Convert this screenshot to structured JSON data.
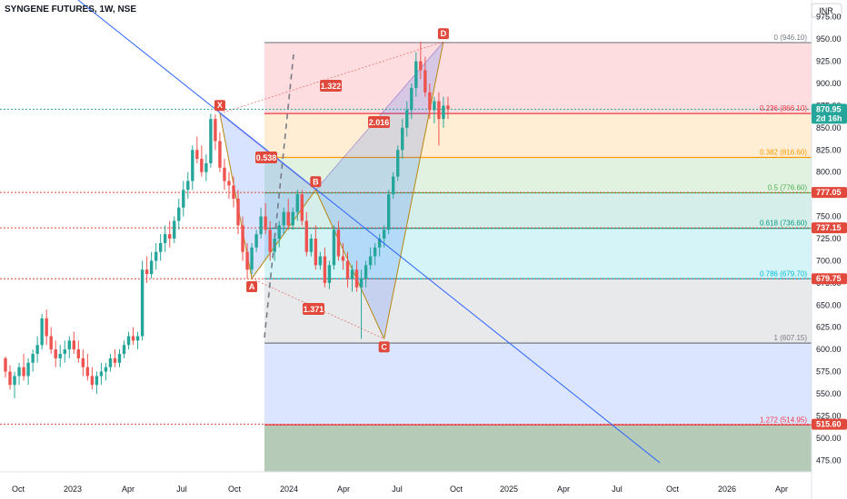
{
  "header": {
    "title": "SYNGENE FUTURES, 1W, NSE",
    "currency": "INR"
  },
  "colors": {
    "up": "#26a69a",
    "down": "#ef5350",
    "pattern_point": "#e0493b",
    "trendline": "#2962ff",
    "pattern_fill": "#2962ff",
    "leg_fill": "#f57c00"
  },
  "chart_data": {
    "type": "candlestick",
    "ylim": [
      462,
      988
    ],
    "x_ticks": [
      "Oct",
      "2023",
      "Apr",
      "Jul",
      "Oct",
      "2024",
      "Apr",
      "Jul",
      "Oct",
      "2025",
      "Apr",
      "Jul",
      "Oct",
      "2026",
      "Apr"
    ],
    "y_ticks": [
      "975.00",
      "950.00",
      "925.00",
      "900.00",
      "875.00",
      "850.00",
      "825.00",
      "800.00",
      "775.00",
      "750.00",
      "725.00",
      "700.00",
      "675.00",
      "650.00",
      "625.00",
      "600.00",
      "575.00",
      "550.00",
      "525.00",
      "500.00",
      "475.00"
    ],
    "price_badges": [
      {
        "text": "870.95",
        "sub": "2d 16h",
        "value": 870.95,
        "color": "#26a69a"
      },
      {
        "text": "777.05",
        "value": 777.05,
        "color": "#e0493b"
      },
      {
        "text": "737.15",
        "value": 737.15,
        "color": "#e0493b"
      },
      {
        "text": "679.75",
        "value": 679.75,
        "color": "#e0493b"
      },
      {
        "text": "515.60",
        "value": 515.6,
        "color": "#e0493b"
      }
    ],
    "fib_levels": [
      {
        "label": "0 (946.10)",
        "value": 946.1,
        "color": "#787b86"
      },
      {
        "label": "0.236 (866.10)",
        "value": 866.1,
        "color": "#f23645"
      },
      {
        "label": "0.382 (816.60)",
        "value": 816.6,
        "color": "#ff9800"
      },
      {
        "label": "0.5 (776.60)",
        "value": 776.6,
        "color": "#4caf50"
      },
      {
        "label": "0.618 (736.60)",
        "value": 736.6,
        "color": "#089981"
      },
      {
        "label": "0.786 (679.70)",
        "value": 679.7,
        "color": "#00bcd4"
      },
      {
        "label": "1 (607.15)",
        "value": 607.15,
        "color": "#787b86"
      },
      {
        "label": "1.272 (514.95)",
        "value": 514.95,
        "color": "#f23645"
      }
    ],
    "fib_zones": [
      {
        "top": 946.1,
        "bottom": 866.1,
        "color": "#f23645"
      },
      {
        "top": 866.1,
        "bottom": 816.6,
        "color": "#ff9800"
      },
      {
        "top": 816.6,
        "bottom": 776.6,
        "color": "#4caf50"
      },
      {
        "top": 776.6,
        "bottom": 736.6,
        "color": "#089981"
      },
      {
        "top": 736.6,
        "bottom": 679.7,
        "color": "#00bcd4"
      },
      {
        "top": 679.7,
        "bottom": 607.15,
        "color": "#787b86"
      },
      {
        "top": 607.15,
        "bottom": 514.95,
        "color": "#2962ff"
      },
      {
        "top": 514.95,
        "bottom": 462,
        "color": "#1b5e20"
      }
    ],
    "horizontal_lines": [
      {
        "value": 870.95,
        "style": "dotted",
        "color": "#26a69a"
      },
      {
        "value": 777.05,
        "style": "dotted",
        "color": "#e0493b"
      },
      {
        "value": 737.15,
        "style": "dotted",
        "color": "#e0493b"
      },
      {
        "value": 679.75,
        "style": "dotted",
        "color": "#e0493b"
      },
      {
        "value": 515.6,
        "style": "dotted",
        "color": "#e0493b"
      }
    ],
    "pattern_points": [
      {
        "name": "X",
        "value": 866
      },
      {
        "name": "A",
        "value": 680
      },
      {
        "name": "B",
        "value": 780
      },
      {
        "name": "C",
        "value": 612
      },
      {
        "name": "D",
        "value": 947
      }
    ],
    "ratios": [
      "1.322",
      "2.016",
      "0.538",
      "1.371"
    ],
    "candles": [
      [
        590,
        592,
        568,
        575
      ],
      [
        575,
        582,
        555,
        560
      ],
      [
        560,
        575,
        545,
        570
      ],
      [
        570,
        585,
        560,
        580
      ],
      [
        580,
        595,
        565,
        570
      ],
      [
        570,
        590,
        560,
        585
      ],
      [
        585,
        600,
        575,
        595
      ],
      [
        595,
        615,
        585,
        605
      ],
      [
        605,
        640,
        600,
        635
      ],
      [
        635,
        645,
        605,
        615
      ],
      [
        615,
        625,
        595,
        600
      ],
      [
        600,
        610,
        580,
        590
      ],
      [
        590,
        605,
        580,
        595
      ],
      [
        595,
        610,
        585,
        600
      ],
      [
        600,
        615,
        590,
        610
      ],
      [
        610,
        620,
        595,
        600
      ],
      [
        600,
        610,
        585,
        590
      ],
      [
        590,
        600,
        570,
        580
      ],
      [
        580,
        595,
        565,
        570
      ],
      [
        570,
        580,
        555,
        560
      ],
      [
        560,
        575,
        550,
        570
      ],
      [
        570,
        585,
        560,
        575
      ],
      [
        575,
        585,
        565,
        580
      ],
      [
        580,
        595,
        575,
        590
      ],
      [
        590,
        600,
        580,
        585
      ],
      [
        585,
        600,
        580,
        595
      ],
      [
        595,
        610,
        590,
        605
      ],
      [
        605,
        620,
        600,
        615
      ],
      [
        615,
        625,
        605,
        610
      ],
      [
        610,
        620,
        600,
        615
      ],
      [
        615,
        700,
        610,
        690
      ],
      [
        690,
        705,
        675,
        685
      ],
      [
        685,
        710,
        680,
        700
      ],
      [
        700,
        720,
        690,
        710
      ],
      [
        710,
        730,
        700,
        720
      ],
      [
        720,
        740,
        710,
        730
      ],
      [
        730,
        745,
        715,
        725
      ],
      [
        725,
        750,
        720,
        745
      ],
      [
        745,
        770,
        735,
        760
      ],
      [
        760,
        790,
        750,
        780
      ],
      [
        780,
        800,
        770,
        790
      ],
      [
        790,
        830,
        780,
        825
      ],
      [
        825,
        840,
        810,
        815
      ],
      [
        815,
        830,
        795,
        800
      ],
      [
        800,
        820,
        790,
        810
      ],
      [
        810,
        866,
        805,
        860
      ],
      [
        860,
        865,
        825,
        835
      ],
      [
        835,
        845,
        800,
        805
      ],
      [
        805,
        815,
        780,
        790
      ],
      [
        790,
        800,
        770,
        785
      ],
      [
        785,
        795,
        760,
        770
      ],
      [
        770,
        780,
        730,
        740
      ],
      [
        740,
        750,
        700,
        710
      ],
      [
        710,
        720,
        680,
        690
      ],
      [
        690,
        720,
        685,
        715
      ],
      [
        715,
        735,
        710,
        730
      ],
      [
        730,
        760,
        725,
        750
      ],
      [
        750,
        765,
        730,
        735
      ],
      [
        735,
        745,
        700,
        710
      ],
      [
        710,
        730,
        700,
        725
      ],
      [
        725,
        745,
        715,
        740
      ],
      [
        740,
        760,
        730,
        755
      ],
      [
        755,
        770,
        735,
        740
      ],
      [
        740,
        760,
        735,
        755
      ],
      [
        755,
        780,
        745,
        775
      ],
      [
        775,
        780,
        740,
        745
      ],
      [
        745,
        755,
        705,
        710
      ],
      [
        710,
        730,
        705,
        725
      ],
      [
        725,
        740,
        690,
        695
      ],
      [
        695,
        710,
        690,
        705
      ],
      [
        705,
        715,
        670,
        675
      ],
      [
        675,
        700,
        668,
        695
      ],
      [
        695,
        740,
        690,
        735
      ],
      [
        735,
        745,
        700,
        705
      ],
      [
        705,
        720,
        690,
        700
      ],
      [
        700,
        710,
        670,
        680
      ],
      [
        680,
        695,
        665,
        690
      ],
      [
        690,
        700,
        665,
        670
      ],
      [
        670,
        690,
        612,
        680
      ],
      [
        680,
        700,
        670,
        695
      ],
      [
        695,
        715,
        690,
        705
      ],
      [
        705,
        720,
        695,
        715
      ],
      [
        715,
        730,
        705,
        725
      ],
      [
        725,
        740,
        715,
        735
      ],
      [
        735,
        780,
        730,
        775
      ],
      [
        775,
        800,
        770,
        795
      ],
      [
        795,
        830,
        790,
        825
      ],
      [
        825,
        860,
        815,
        850
      ],
      [
        850,
        880,
        840,
        870
      ],
      [
        870,
        900,
        860,
        895
      ],
      [
        895,
        935,
        885,
        925
      ],
      [
        925,
        947,
        905,
        915
      ],
      [
        915,
        930,
        885,
        890
      ],
      [
        890,
        900,
        860,
        870
      ],
      [
        870,
        885,
        855,
        880
      ],
      [
        880,
        890,
        830,
        860
      ],
      [
        860,
        885,
        850,
        875
      ],
      [
        875,
        885,
        860,
        870.95
      ]
    ]
  }
}
